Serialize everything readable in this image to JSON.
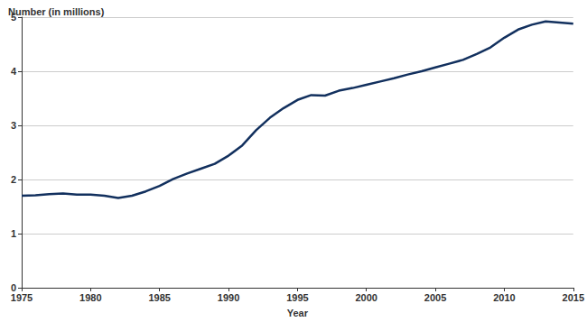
{
  "chart_data": {
    "type": "line",
    "y_label": "Number (in millions)",
    "x_label": "Year",
    "x": [
      1975,
      1976,
      1977,
      1978,
      1979,
      1980,
      1981,
      1982,
      1983,
      1984,
      1985,
      1986,
      1987,
      1988,
      1989,
      1990,
      1991,
      1992,
      1993,
      1994,
      1995,
      1996,
      1997,
      1998,
      1999,
      2000,
      2001,
      2002,
      2003,
      2004,
      2005,
      2006,
      2007,
      2008,
      2009,
      2010,
      2011,
      2012,
      2013,
      2014,
      2015
    ],
    "values": [
      1.7,
      1.71,
      1.73,
      1.74,
      1.72,
      1.72,
      1.7,
      1.66,
      1.7,
      1.78,
      1.88,
      2.01,
      2.11,
      2.2,
      2.29,
      2.44,
      2.63,
      2.91,
      3.14,
      3.32,
      3.47,
      3.56,
      3.55,
      3.64,
      3.69,
      3.75,
      3.81,
      3.87,
      3.94,
      4.0,
      4.07,
      4.14,
      4.21,
      4.32,
      4.44,
      4.62,
      4.77,
      4.86,
      4.92,
      4.9,
      4.88
    ],
    "color": "#12305e",
    "xlim": [
      1975,
      2015
    ],
    "xticks": [
      1975,
      1980,
      1985,
      1990,
      1995,
      2000,
      2005,
      2010,
      2015
    ],
    "ylim": [
      0,
      5
    ],
    "yticks": [
      0,
      1,
      2,
      3,
      4,
      5
    ],
    "grid": true
  }
}
